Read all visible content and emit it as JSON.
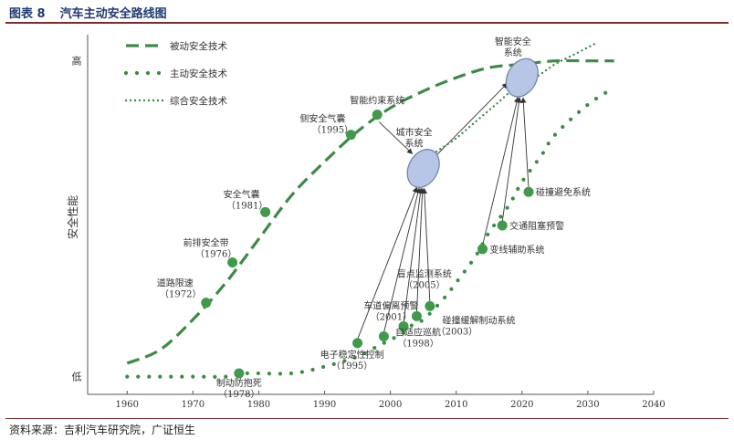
{
  "page": {
    "figure_number": "图表 8",
    "figure_title": "汽车主动安全路线图",
    "source": "资料来源：吉利汽车研究院，广证恒生"
  },
  "chart_data": {
    "type": "line",
    "title": "汽车主动安全路线图",
    "xlabel": "",
    "ylabel": "安全性能",
    "xlim": [
      1954,
      2040
    ],
    "ylim": [
      0,
      100
    ],
    "x_ticks": [
      1960,
      1970,
      1980,
      1990,
      2000,
      2010,
      2020,
      2030,
      2040
    ],
    "y_ticks": [
      {
        "label": "低",
        "value": 2
      },
      {
        "label": "高",
        "value": 96
      }
    ],
    "grid": false,
    "legend_position": "top-left",
    "colors": {
      "curve": "#3d8a46",
      "node": "#3f9a4a",
      "bubble": "#b7c6e6",
      "arrow": "#333333"
    },
    "series": [
      {
        "name": "被动安全技术",
        "style": "dashed",
        "x": [
          1960,
          1965,
          1970,
          1975,
          1980,
          1985,
          1990,
          1995,
          2000,
          2005,
          2010,
          2015,
          2020,
          2025,
          2030,
          2034
        ],
        "y": [
          6,
          10,
          19,
          30,
          43,
          56,
          66,
          75,
          82,
          87,
          91,
          94,
          95,
          96,
          96,
          96
        ]
      },
      {
        "name": "主动安全技术",
        "style": "dotted",
        "x": [
          1960,
          1965,
          1970,
          1975,
          1978,
          1985,
          1990,
          1995,
          1998,
          2000,
          2002,
          2003,
          2005,
          2008,
          2010,
          2013,
          2015,
          2018,
          2020,
          2023,
          2025,
          2030,
          2034
        ],
        "y": [
          2,
          2,
          2,
          2,
          3,
          3,
          5,
          8,
          11,
          13,
          15,
          17,
          19,
          25,
          30,
          38,
          45,
          53,
          60,
          68,
          74,
          83,
          88
        ]
      },
      {
        "name": "综合安全技术",
        "style": "fine-dotted",
        "x": [
          2007,
          2010,
          2013,
          2016,
          2019,
          2022,
          2025,
          2028,
          2031
        ],
        "y": [
          69,
          73,
          78,
          83,
          88,
          91,
          95,
          98,
          101
        ]
      }
    ],
    "passive_milestones": [
      {
        "label": "道路限速",
        "year": "1972",
        "x": 1972,
        "y": 24
      },
      {
        "label": "前排安全带",
        "year": "1976",
        "x": 1976,
        "y": 36
      },
      {
        "label": "安全气囊",
        "year": "1981",
        "x": 1981,
        "y": 51
      },
      {
        "label": "侧安全气囊",
        "year": "1995",
        "x": 1994,
        "y": 74
      },
      {
        "label": "智能约束系统",
        "year": "",
        "x": 1998,
        "y": 80
      }
    ],
    "active_milestones": [
      {
        "label": "制动防抱死",
        "year": "1978",
        "x": 1977,
        "y": 3
      },
      {
        "label": "电子稳定性控制",
        "year": "1995",
        "x": 1995,
        "y": 12
      },
      {
        "label": "车道偏离预警",
        "year": "2001",
        "x": 1999,
        "y": 14
      },
      {
        "label": "自适应巡航",
        "year": "1998",
        "x": 2002,
        "y": 17
      },
      {
        "label": "碰撞缓解制动系统",
        "year": "2003",
        "x": 2004,
        "y": 20
      },
      {
        "label": "盲点监测系统",
        "year": "2005",
        "x": 2006,
        "y": 23
      },
      {
        "label": "变线辅助系统",
        "year": "",
        "x": 2014,
        "y": 40
      },
      {
        "label": "交通阻塞预警",
        "year": "",
        "x": 2017,
        "y": 47
      },
      {
        "label": "碰撞避免系统",
        "year": "",
        "x": 2021,
        "y": 57
      }
    ],
    "bubbles": [
      {
        "label_lines": [
          "城市安全",
          "系统"
        ],
        "x": 2005,
        "y": 64
      },
      {
        "label_lines": [
          "智能安全",
          "系统"
        ],
        "x": 2020,
        "y": 91
      }
    ]
  }
}
